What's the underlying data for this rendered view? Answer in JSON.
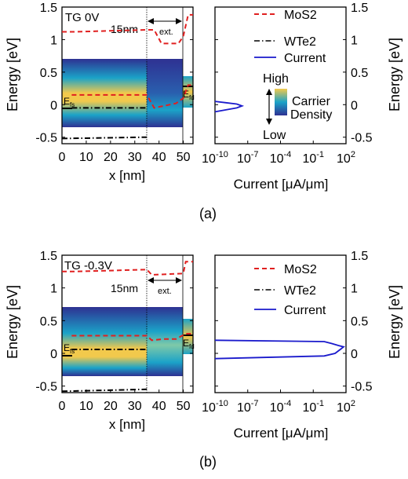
{
  "panels": [
    {
      "label": "(a)",
      "gate_label": "TG 0V",
      "ylabel": "Energy [eV]",
      "ylabel_right": "Energy [eV]",
      "band": {
        "xlabel": "x [nm]",
        "xlim": [
          0,
          54
        ],
        "xticks": [
          "0",
          "10",
          "20",
          "30",
          "40",
          "50"
        ],
        "ylim": [
          -0.6,
          1.5
        ],
        "yticks": [
          "1.5",
          "1",
          "0.5",
          "0",
          "-0.5"
        ],
        "length_label": "15nm",
        "ext_label": "ext.",
        "ef_source_label": "E",
        "ef_source_sub": "fs",
        "ef_drain_label": "E",
        "ef_drain_sub": "fd"
      },
      "current": {
        "xlabel": "Current [μA/μm]",
        "xticks": [
          "10^-10",
          "10^-7",
          "10^-4",
          "10^-1",
          "10^2"
        ],
        "legend": [
          "MoS2",
          "WTe2",
          "Current"
        ],
        "colorbar_high": "High",
        "colorbar_low": "Low",
        "colorbar_title_1": "Carrier",
        "colorbar_title_2": "Density"
      }
    },
    {
      "label": "(b)",
      "gate_label": "TG -0.3V",
      "ylabel": "Energy [eV]",
      "ylabel_right": "Energy [eV]",
      "band": {
        "xlabel": "x [nm]",
        "xlim": [
          0,
          54
        ],
        "xticks": [
          "0",
          "10",
          "20",
          "30",
          "40",
          "50"
        ],
        "ylim": [
          -0.6,
          1.5
        ],
        "yticks": [
          "1.5",
          "1",
          "0.5",
          "0",
          "-0.5"
        ],
        "length_label": "15nm",
        "ext_label": "ext.",
        "ef_source_label": "E",
        "ef_source_sub": "fs",
        "ef_drain_label": "E",
        "ef_drain_sub": "fd"
      },
      "current": {
        "xlabel": "Current [μA/μm]",
        "xticks": [
          "10^-10",
          "10^-7",
          "10^-4",
          "10^-1",
          "10^2"
        ],
        "legend": [
          "MoS2",
          "WTe2",
          "Current"
        ]
      }
    }
  ],
  "colors": {
    "mos2": "#e02020",
    "wte2": "#000000",
    "current": "#1a1acc",
    "density_low": "#2a2a8c",
    "density_mid": "#1ba3c8",
    "density_high": "#f2c94c"
  },
  "chart_data": [
    {
      "type": "line",
      "panel": "(a) band diagram",
      "xlabel": "x [nm]",
      "ylabel": "Energy [eV]",
      "xlim": [
        0,
        54
      ],
      "ylim": [
        -0.6,
        1.5
      ],
      "series": [
        {
          "name": "MoS2",
          "style": "dashed",
          "x": [
            0,
            5,
            35,
            38,
            41,
            48,
            50,
            52,
            54
          ],
          "y": [
            1.12,
            1.12,
            1.15,
            1.15,
            0.94,
            0.94,
            1.05,
            1.38,
            1.38
          ]
        },
        {
          "name": "MoS2",
          "style": "dashed",
          "x": [
            4,
            35,
            38,
            47,
            50,
            52,
            54
          ],
          "y": [
            0.15,
            0.15,
            -0.05,
            0.02,
            0.1,
            0.3,
            0.3
          ]
        },
        {
          "name": "WTe2",
          "style": "dashdot",
          "x": [
            4,
            35
          ],
          "y": [
            -0.05,
            -0.05
          ]
        },
        {
          "name": "WTe2",
          "style": "dashdot",
          "x": [
            0,
            35
          ],
          "y": [
            -0.52,
            -0.5
          ]
        }
      ],
      "annotations": [
        "TG 0V",
        "15nm",
        "ext."
      ]
    },
    {
      "type": "line",
      "panel": "(a) current",
      "xlabel": "Current [μA/μm]",
      "ylabel": "Energy [eV]",
      "xscale": "log",
      "xlim": [
        1e-10,
        100
      ],
      "ylim": [
        -0.6,
        1.5
      ],
      "series": [
        {
          "name": "Current",
          "x": [
            1e-10,
            1e-09,
            1e-08,
            3e-08,
            1e-08,
            1e-09,
            1e-10
          ],
          "y": [
            0.05,
            0.03,
            0.01,
            -0.02,
            -0.05,
            -0.08,
            -0.11
          ]
        }
      ]
    },
    {
      "type": "line",
      "panel": "(b) band diagram",
      "xlabel": "x [nm]",
      "ylabel": "Energy [eV]",
      "xlim": [
        0,
        54
      ],
      "ylim": [
        -0.6,
        1.5
      ],
      "series": [
        {
          "name": "MoS2",
          "style": "dashed",
          "x": [
            0,
            5,
            35,
            37,
            50,
            51,
            54
          ],
          "y": [
            1.25,
            1.25,
            1.28,
            1.2,
            1.22,
            1.4,
            1.4
          ]
        },
        {
          "name": "MoS2",
          "style": "dashed",
          "x": [
            4,
            35,
            37,
            42,
            47,
            51,
            54
          ],
          "y": [
            0.27,
            0.27,
            0.2,
            0.22,
            0.22,
            0.3,
            0.3
          ]
        },
        {
          "name": "WTe2",
          "style": "dashdot",
          "x": [
            4,
            35
          ],
          "y": [
            0.06,
            0.06
          ]
        },
        {
          "name": "WTe2",
          "style": "dashdot",
          "x": [
            0,
            35
          ],
          "y": [
            -0.58,
            -0.55
          ]
        }
      ],
      "annotations": [
        "TG -0.3V",
        "15nm",
        "ext."
      ]
    },
    {
      "type": "line",
      "panel": "(b) current",
      "xlabel": "Current [μA/μm]",
      "ylabel": "Energy [eV]",
      "xscale": "log",
      "xlim": [
        1e-10,
        100
      ],
      "ylim": [
        -0.6,
        1.5
      ],
      "series": [
        {
          "name": "Current",
          "x": [
            1e-10,
            1,
            5,
            20,
            60,
            30,
            10,
            1,
            1e-10
          ],
          "y": [
            0.2,
            0.18,
            0.15,
            0.12,
            0.1,
            0.06,
            0.0,
            -0.04,
            -0.08
          ]
        }
      ]
    }
  ]
}
